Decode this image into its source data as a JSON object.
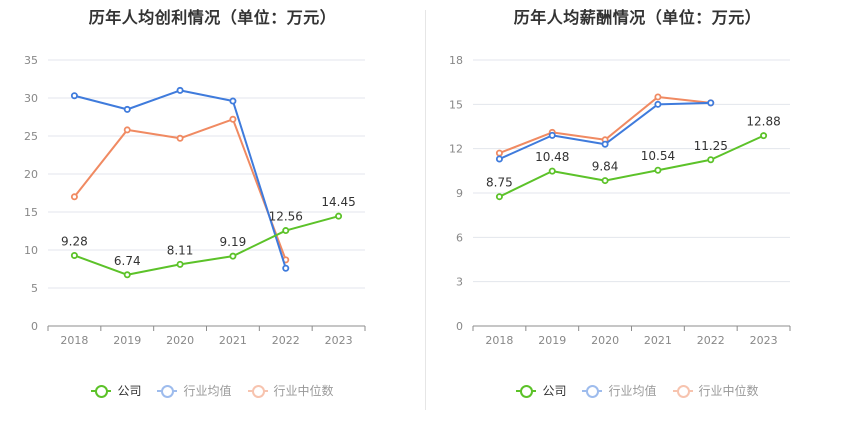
{
  "chart_data": [
    {
      "type": "line",
      "title": "历年人均创利情况（单位：万元）",
      "categories": [
        "2018",
        "2019",
        "2020",
        "2021",
        "2022",
        "2023"
      ],
      "yticks": [
        0,
        5,
        10,
        15,
        20,
        25,
        30,
        35
      ],
      "ylim": [
        0,
        35
      ],
      "grid": true,
      "legend_position": "bottom",
      "series": [
        {
          "name": "公司",
          "color": "#5cc229",
          "values": [
            9.28,
            6.74,
            8.11,
            9.19,
            12.56,
            14.45
          ],
          "labels": [
            "9.28",
            "6.74",
            "8.11",
            "9.19",
            "12.56",
            "14.45"
          ],
          "legend_opacity": 1
        },
        {
          "name": "行业均值",
          "color": "#3f7bdc",
          "values": [
            30.3,
            28.5,
            31.0,
            29.6,
            7.6,
            null
          ],
          "labels": [],
          "legend_opacity": 0.5
        },
        {
          "name": "行业中位数",
          "color": "#f08a62",
          "values": [
            17.0,
            25.8,
            24.7,
            27.2,
            8.7,
            null
          ],
          "labels": [],
          "legend_opacity": 0.5
        }
      ]
    },
    {
      "type": "line",
      "title": "历年人均薪酬情况（单位：万元）",
      "categories": [
        "2018",
        "2019",
        "2020",
        "2021",
        "2022",
        "2023"
      ],
      "yticks": [
        0,
        3,
        6,
        9,
        12,
        15,
        18
      ],
      "ylim": [
        0,
        18
      ],
      "grid": true,
      "legend_position": "bottom",
      "series": [
        {
          "name": "公司",
          "color": "#5cc229",
          "values": [
            8.75,
            10.48,
            9.84,
            10.54,
            11.25,
            12.88
          ],
          "labels": [
            "8.75",
            "10.48",
            "9.84",
            "10.54",
            "11.25",
            "12.88"
          ],
          "legend_opacity": 1
        },
        {
          "name": "行业均值",
          "color": "#3f7bdc",
          "values": [
            11.3,
            12.9,
            12.3,
            15.0,
            15.1,
            null
          ],
          "labels": [],
          "legend_opacity": 0.5
        },
        {
          "name": "行业中位数",
          "color": "#f08a62",
          "values": [
            11.7,
            13.1,
            12.6,
            15.5,
            15.1,
            null
          ],
          "labels": [],
          "legend_opacity": 0.5
        }
      ]
    }
  ]
}
